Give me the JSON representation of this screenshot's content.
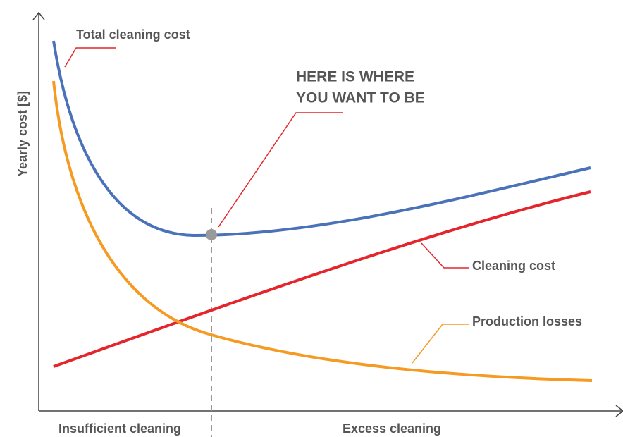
{
  "y_axis_label": "Yearly cost [$]",
  "x_axis_labels": {
    "left": "Insufficient cleaning",
    "right": "Excess cleaning"
  },
  "curves": {
    "total": "Total cleaning cost",
    "cleaning": "Cleaning cost",
    "losses": "Production losses"
  },
  "callout": {
    "lines": [
      "HERE IS WHERE",
      "YOU WANT TO BE"
    ]
  }
}
